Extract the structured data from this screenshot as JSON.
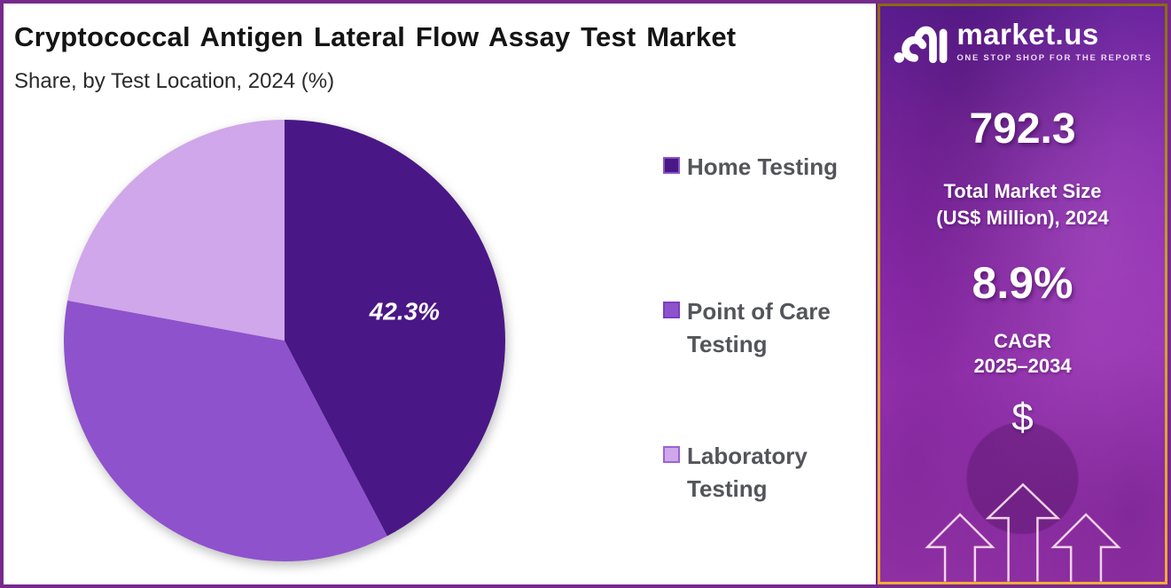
{
  "header": {
    "title": "Cryptococcal Antigen Lateral Flow Assay Test Market",
    "subtitle": "Share, by Test Location, 2024 (%)"
  },
  "chart_data": {
    "type": "pie",
    "title": "Cryptococcal Antigen Lateral Flow Assay Test Market Share, by Test Location, 2024 (%)",
    "categories": [
      "Home Testing",
      "Point of Care Testing",
      "Laboratory Testing"
    ],
    "values": [
      42.3,
      35.6,
      22.1
    ],
    "slice_labels": [
      "42.3%",
      "",
      ""
    ],
    "colors": [
      "#4a1786",
      "#8e52cc",
      "#cfa7ea"
    ],
    "start_angle_deg": 0,
    "direction": "clockwise",
    "legend_position": "right"
  },
  "legend": {
    "items": [
      {
        "label": "Home Testing",
        "color": "#4a1786",
        "border": "#8655c8"
      },
      {
        "label": "Point of Care Testing",
        "color": "#8e52cc",
        "border": "#7a3fbf"
      },
      {
        "label": "Laboratory Testing",
        "color": "#cfa7ea",
        "border": "#9b62d6"
      }
    ]
  },
  "sidebar": {
    "brand": "market.us",
    "tagline": "ONE STOP SHOP FOR THE REPORTS",
    "market_size_value": "792.3",
    "market_size_label_line1": "Total Market Size",
    "market_size_label_line2": "(US$ Million), 2024",
    "cagr_value": "8.9%",
    "cagr_label": "CAGR",
    "cagr_period": "2025–2034",
    "dollar_symbol": "$"
  },
  "colors": {
    "frame_border": "#772a8c",
    "gold_border_top": "#8a6b10",
    "gold_border_bottom": "#f4a93a",
    "panel_gradient_top": "#61209a",
    "panel_gradient_bottom": "#a13ab4",
    "legend_text": "#54555a",
    "slice_label_text": "#ffffff"
  }
}
